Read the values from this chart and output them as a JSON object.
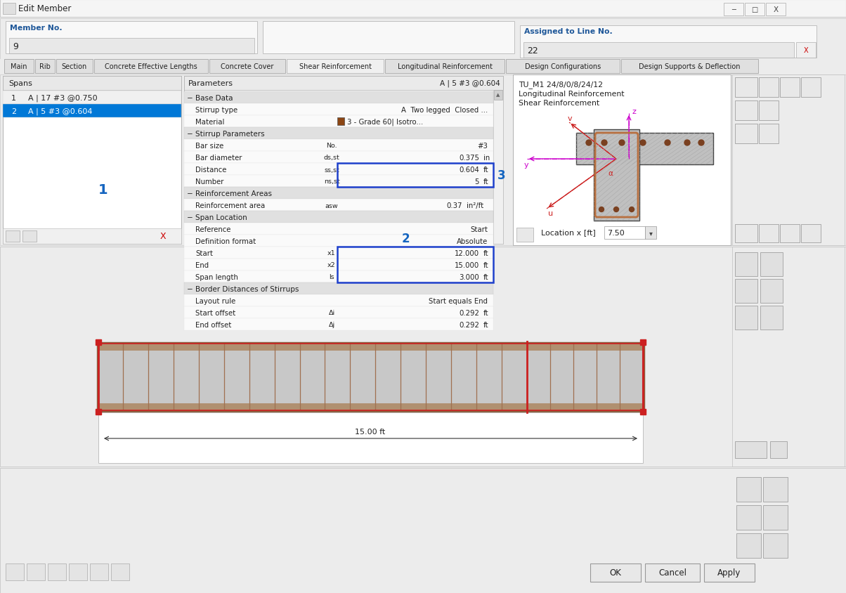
{
  "title": "Edit Member",
  "member_no_label": "Member No.",
  "member_no_value": "9",
  "assigned_label": "Assigned to Line No.",
  "assigned_value": "22",
  "tabs": [
    "Main",
    "Rib",
    "Section",
    "Concrete Effective Lengths",
    "Concrete Cover",
    "Shear Reinforcement",
    "Longitudinal Reinforcement",
    "Design Configurations",
    "Design Supports & Deflection"
  ],
  "active_tab": "Shear Reinforcement",
  "spans_label": "Spans",
  "spans": [
    {
      "num": 1,
      "text": "A | 17 #3 @0.750",
      "selected": false
    },
    {
      "num": 2,
      "text": "A | 5 #3 @0.604",
      "selected": true
    }
  ],
  "params_label": "Parameters",
  "params_right": "A | 5 #3 @0.604",
  "annotation1": "1",
  "annotation2": "2",
  "annotation3": "3",
  "location_label": "Location x [ft]",
  "location_value": "7.50",
  "bottom_length": "15.00 ft",
  "bg_color": "#ececec",
  "panel_bg": "#ffffff",
  "header_blue": "#1e5799",
  "selection_blue": "#0078d7",
  "annot_blue": "#1565c0",
  "section_bg": "#e4e4e4",
  "row_bg": "#f7f7f7",
  "row_alt": "#ffffff",
  "input_border": "#1e40cc",
  "title_bar_bg": "#f0f0f0",
  "tab_active_bg": "#f0f0f0",
  "tab_inactive_bg": "#e0e0e0",
  "border_color": "#b0b0b0",
  "stirrup_brown": "#b87040",
  "beam_fill": "#c8c8c8",
  "beam_border": "#8b6040",
  "hatch_color": "#aaaaaa",
  "red_line": "#cc2020",
  "magenta": "#cc00cc",
  "red_arrow": "#cc2020"
}
